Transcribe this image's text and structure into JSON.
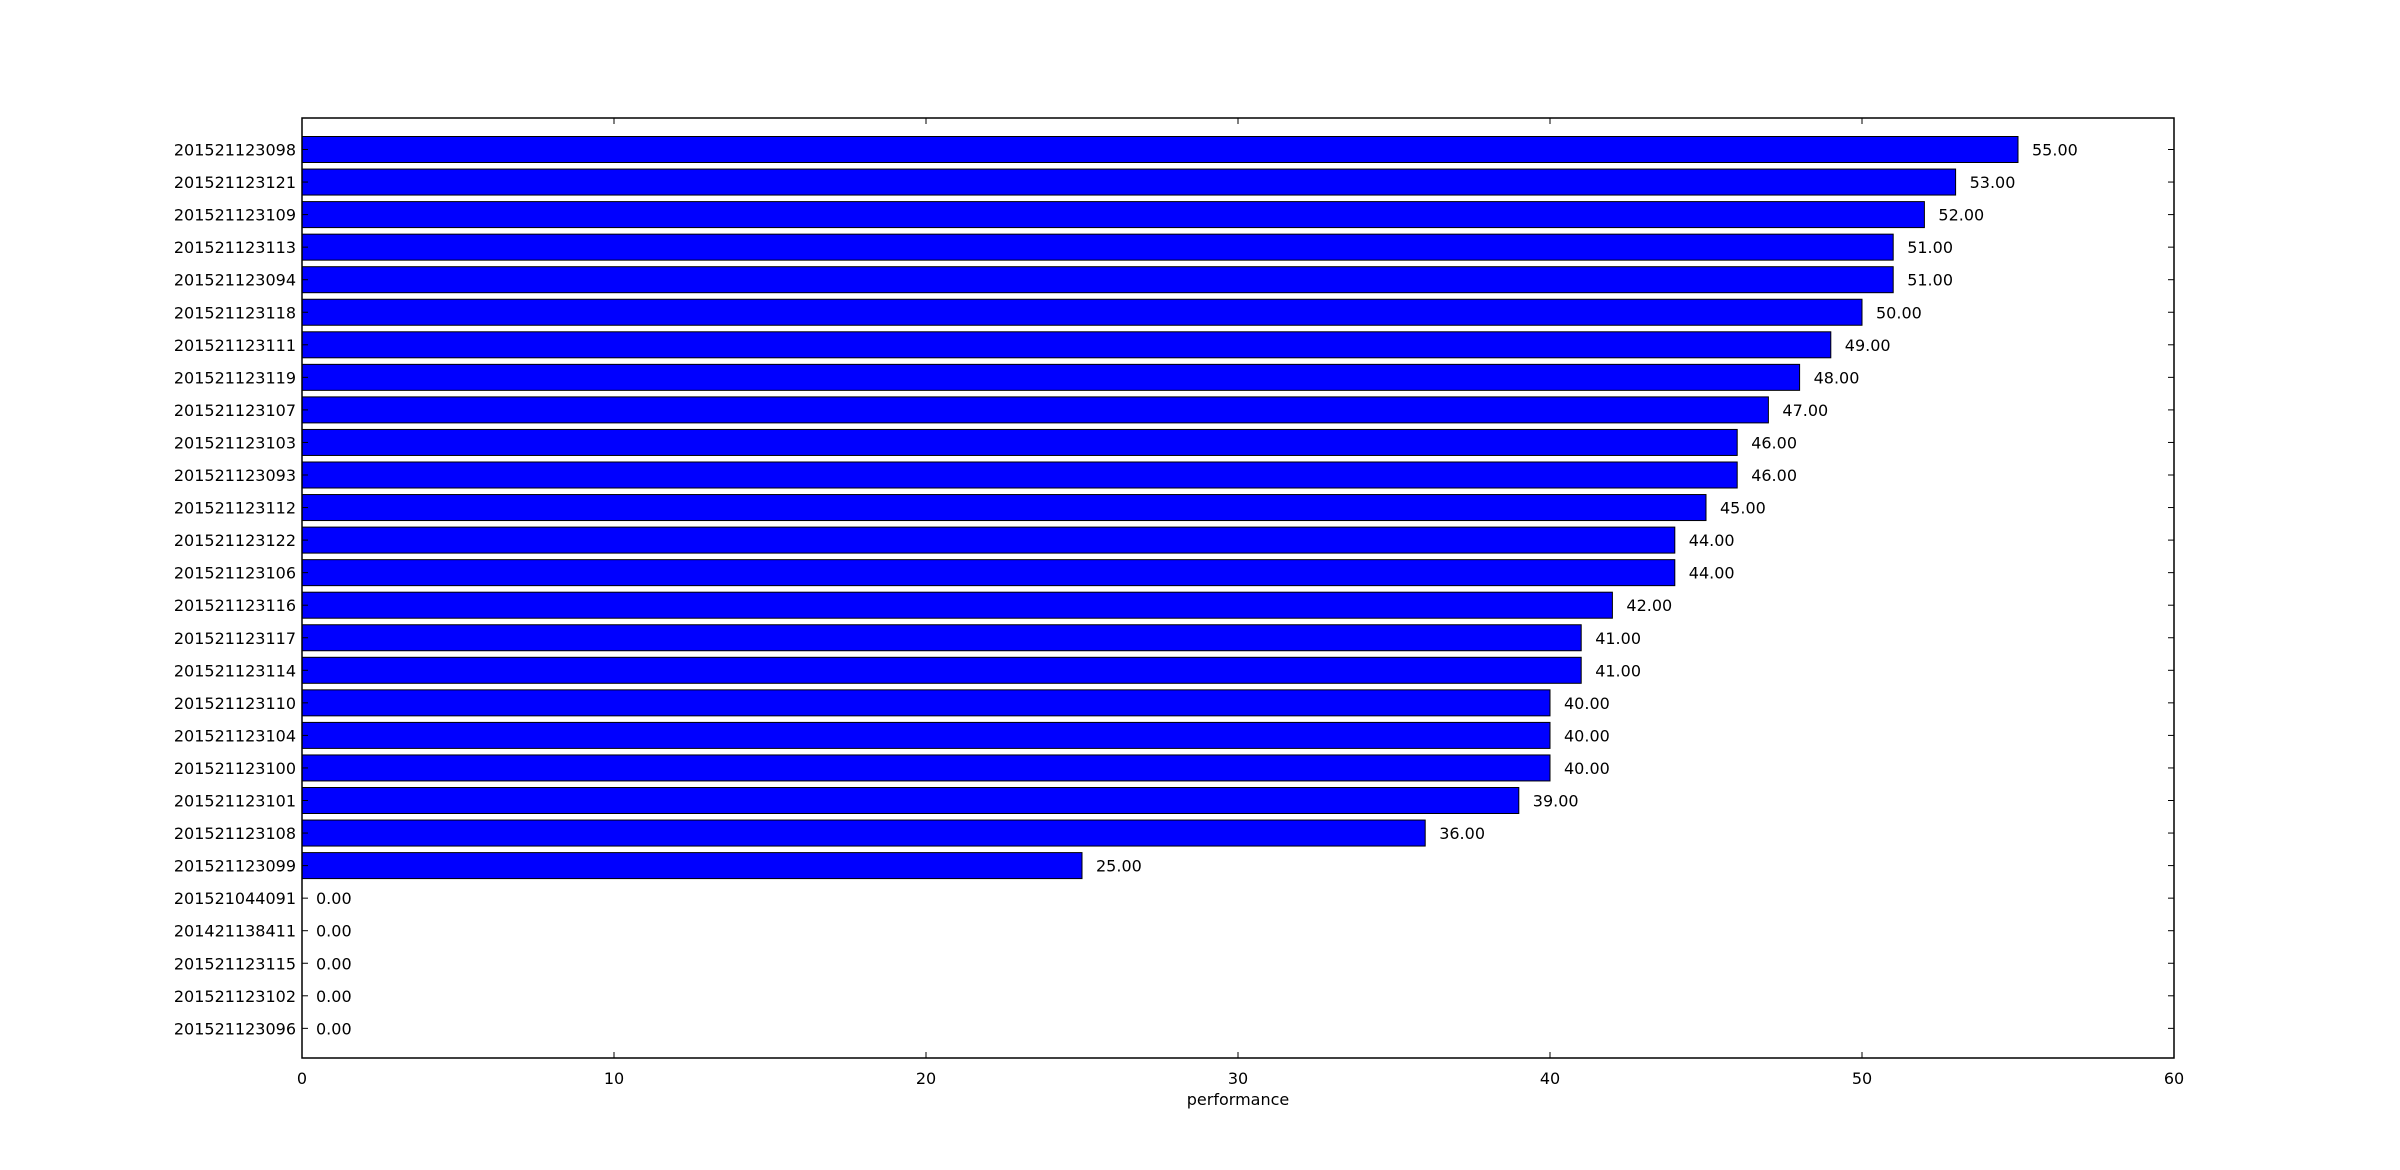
{
  "chart_data": {
    "type": "bar",
    "orientation": "horizontal",
    "xlabel": "performance",
    "ylabel": "",
    "title": "",
    "xlim": [
      0,
      60
    ],
    "xticks": [
      0,
      10,
      20,
      30,
      40,
      50,
      60
    ],
    "grid": false,
    "legend": "none",
    "value_label_format": "2 decimals",
    "bar_color": "#0000ff",
    "bar_edge_color": "#000000",
    "categories": [
      "201521123098",
      "201521123121",
      "201521123109",
      "201521123113",
      "201521123094",
      "201521123118",
      "201521123111",
      "201521123119",
      "201521123107",
      "201521123103",
      "201521123093",
      "201521123112",
      "201521123122",
      "201521123106",
      "201521123116",
      "201521123117",
      "201521123114",
      "201521123110",
      "201521123104",
      "201521123100",
      "201521123101",
      "201521123108",
      "201521123099",
      "201521044091",
      "201421138411",
      "201521123115",
      "201521123102",
      "201521123096"
    ],
    "values": [
      55,
      53,
      52,
      51,
      51,
      50,
      49,
      48,
      47,
      46,
      46,
      45,
      44,
      44,
      42,
      41,
      41,
      40,
      40,
      40,
      39,
      36,
      25,
      0,
      0,
      0,
      0,
      0
    ]
  }
}
